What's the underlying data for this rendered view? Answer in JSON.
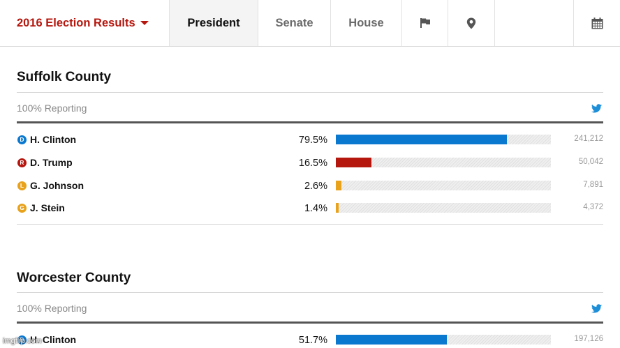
{
  "header": {
    "title": "2016 Election Results",
    "tabs": [
      {
        "label": "President",
        "active": true
      },
      {
        "label": "Senate",
        "active": false
      },
      {
        "label": "House",
        "active": false
      }
    ],
    "icons": [
      "flag-icon",
      "map-pin-icon",
      "calendar-icon"
    ]
  },
  "colors": {
    "brand": "#b5170e",
    "democrat": "#0b78d0",
    "republican": "#b5170e",
    "libertarian": "#e8a21c",
    "green": "#e8a21c",
    "twitter": "#1d8ed8"
  },
  "counties": [
    {
      "name": "Suffolk County",
      "reporting": "100% Reporting",
      "candidates": [
        {
          "party": "D",
          "name": "H. Clinton",
          "pct_label": "79.5%",
          "pct": 79.5,
          "votes": "241,212"
        },
        {
          "party": "R",
          "name": "D. Trump",
          "pct_label": "16.5%",
          "pct": 16.5,
          "votes": "50,042"
        },
        {
          "party": "L",
          "name": "G. Johnson",
          "pct_label": "2.6%",
          "pct": 2.6,
          "votes": "7,891"
        },
        {
          "party": "G",
          "name": "J. Stein",
          "pct_label": "1.4%",
          "pct": 1.4,
          "votes": "4,372"
        }
      ]
    },
    {
      "name": "Worcester County",
      "reporting": "100% Reporting",
      "candidates": [
        {
          "party": "D",
          "name": "H. Clinton",
          "pct_label": "51.7%",
          "pct": 51.7,
          "votes": "197,126"
        }
      ]
    }
  ],
  "watermark": "imgflip.com"
}
